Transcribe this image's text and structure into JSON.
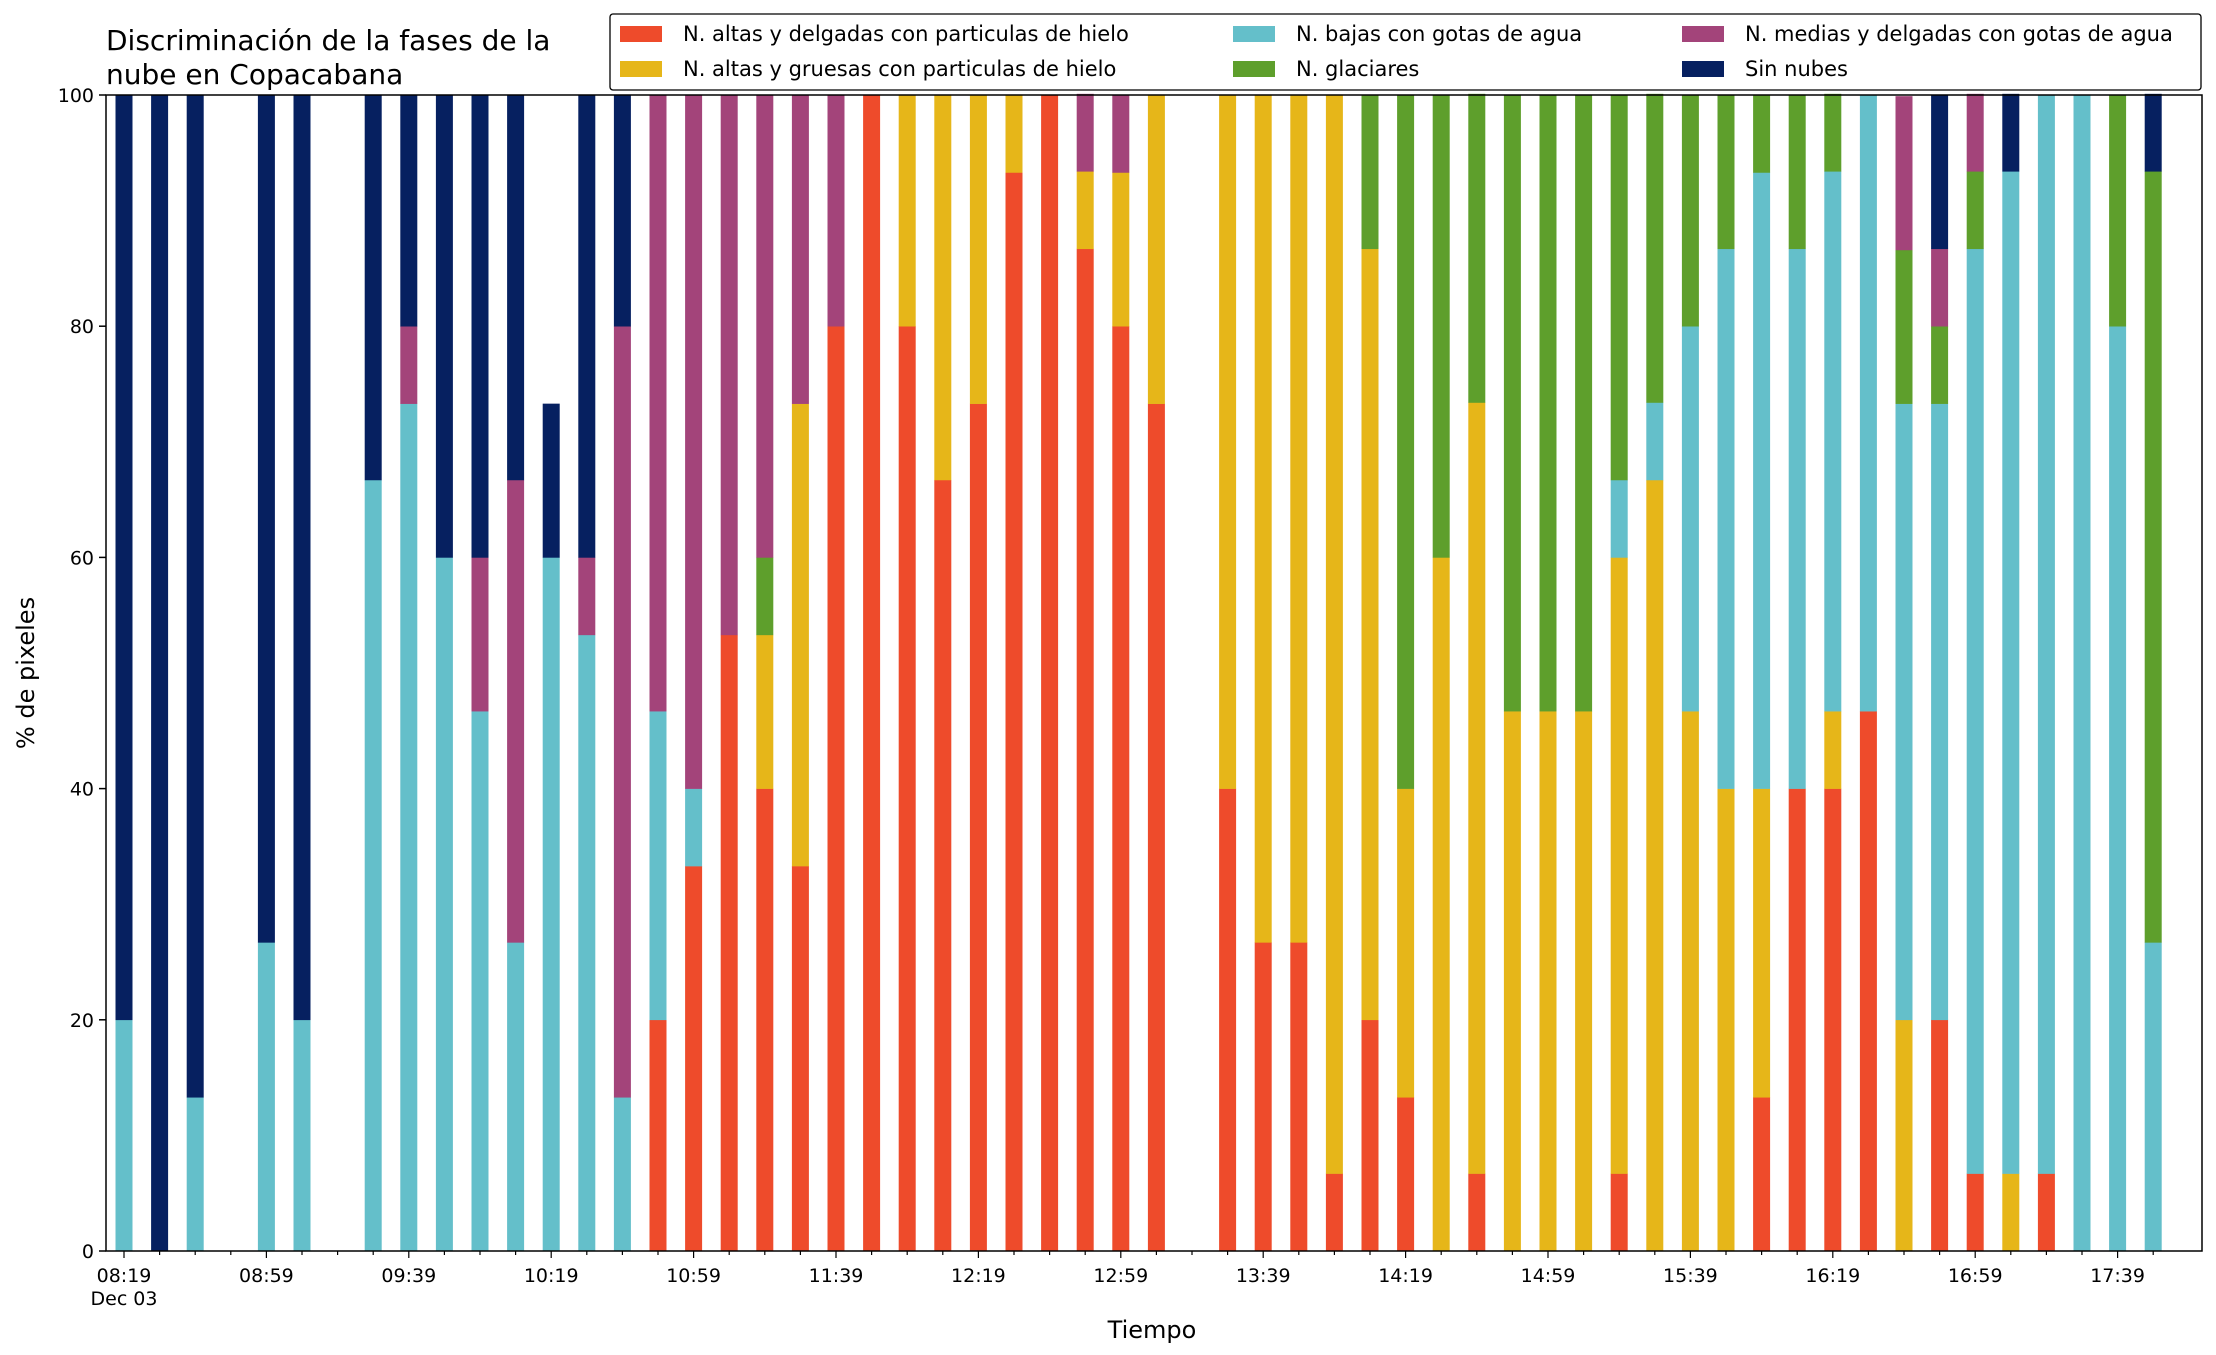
{
  "chart_data": {
    "type": "bar",
    "stacked": true,
    "title_lines": [
      "Discriminación de la fases de la",
      "nube en Copacabana"
    ],
    "xlabel": "Tiempo",
    "ylabel": "% de pixeles",
    "ylim": [
      0,
      100
    ],
    "yticks": [
      0,
      20,
      40,
      60,
      80,
      100
    ],
    "x_tick_labels": [
      "08:19",
      "08:59",
      "09:39",
      "10:19",
      "10:59",
      "11:39",
      "12:19",
      "12:59",
      "13:39",
      "14:19",
      "14:59",
      "15:39",
      "16:19",
      "16:59",
      "17:39"
    ],
    "x_tick_sublabel": "Dec 03",
    "legend_position": "top-right",
    "grid": false,
    "start_time": "08:19",
    "interval_minutes": 10,
    "series": [
      {
        "name": "N. altas y delgadas con particulas de hielo",
        "color": "#EE4B2B",
        "values": [
          0,
          0,
          0,
          0,
          0,
          0,
          0,
          0,
          0,
          0,
          0,
          0,
          0,
          0,
          0,
          20,
          33.3,
          53.3,
          40,
          33.3,
          80,
          100,
          80,
          66.7,
          73.3,
          93.3,
          100,
          86.7,
          80,
          73.3,
          null,
          40,
          26.7,
          26.7,
          6.7,
          20,
          13.3,
          0,
          6.7,
          0,
          0,
          0,
          6.7,
          0,
          0,
          0,
          13.3,
          40,
          40,
          46.7,
          0,
          20,
          6.7,
          0,
          6.7,
          0,
          0,
          0
        ]
      },
      {
        "name": "N. altas y gruesas con particulas de hielo",
        "color": "#E6B619",
        "values": [
          0,
          0,
          0,
          0,
          0,
          0,
          0,
          0,
          0,
          0,
          0,
          0,
          0,
          0,
          0,
          0,
          0,
          0,
          13.3,
          40,
          0,
          0,
          20,
          33.3,
          26.7,
          6.7,
          0,
          6.7,
          13.3,
          26.7,
          null,
          60,
          73.3,
          73.3,
          93.3,
          66.7,
          26.7,
          60,
          66.7,
          46.7,
          46.7,
          46.7,
          53.3,
          66.7,
          46.7,
          40,
          26.7,
          0,
          6.7,
          0,
          20,
          0,
          0,
          6.7,
          0,
          0,
          0,
          0
        ]
      },
      {
        "name": "N. bajas con gotas de agua",
        "color": "#64BFCA",
        "values": [
          20,
          0,
          13.3,
          0,
          26.7,
          20,
          0,
          66.7,
          73.3,
          60,
          46.7,
          26.7,
          60,
          53.3,
          13.3,
          26.7,
          6.7,
          0,
          0,
          0,
          0,
          0,
          0,
          0,
          0,
          0,
          0,
          0,
          0,
          0,
          null,
          0,
          0,
          0,
          0,
          0,
          0,
          0,
          0,
          0,
          0,
          0,
          6.7,
          6.7,
          33.3,
          46.7,
          53.3,
          46.7,
          46.7,
          53.3,
          53.3,
          53.3,
          80,
          86.7,
          93.3,
          100,
          80,
          26.7
        ]
      },
      {
        "name": "N. glaciares",
        "color": "#5E9F2C",
        "values": [
          0,
          0,
          0,
          0,
          0,
          0,
          0,
          0,
          0,
          0,
          0,
          0,
          0,
          0,
          0,
          0,
          0,
          0,
          6.7,
          0,
          0,
          0,
          0,
          0,
          0,
          0,
          0,
          0,
          0,
          0,
          null,
          0,
          0,
          0,
          0,
          13.3,
          60,
          40,
          26.7,
          53.3,
          53.3,
          53.3,
          33.3,
          26.7,
          20,
          13.3,
          6.7,
          13.3,
          6.7,
          0,
          13.3,
          6.7,
          6.7,
          0,
          0,
          0,
          20,
          66.7
        ]
      },
      {
        "name": "N. medias y delgadas con gotas de agua",
        "color": "#A3447A",
        "values": [
          0,
          0,
          0,
          0,
          0,
          0,
          0,
          0,
          6.7,
          0,
          13.3,
          40,
          0,
          6.7,
          66.7,
          53.3,
          60,
          46.7,
          40,
          26.7,
          20,
          0,
          0,
          0,
          0,
          0,
          0,
          6.7,
          6.7,
          0,
          null,
          0,
          0,
          0,
          0,
          0,
          0,
          0,
          0,
          0,
          0,
          0,
          0,
          0,
          0,
          0,
          0,
          0,
          0,
          0,
          13.3,
          6.7,
          6.7,
          0,
          0,
          0,
          0,
          0
        ]
      },
      {
        "name": "Sin nubes",
        "color": "#062060",
        "values": [
          80,
          100,
          86.7,
          0,
          73.3,
          80,
          0,
          33.3,
          20,
          40,
          40,
          33.3,
          13.3,
          40,
          20,
          0,
          0,
          0,
          0,
          0,
          0,
          0,
          0,
          0,
          0,
          0,
          0,
          0,
          0,
          0,
          null,
          0,
          0,
          0,
          0,
          0,
          0,
          0,
          0,
          0,
          0,
          0,
          0,
          0,
          0,
          0,
          0,
          0,
          0,
          0,
          0,
          13.3,
          0,
          6.7,
          0,
          0,
          0,
          6.7
        ]
      }
    ]
  }
}
